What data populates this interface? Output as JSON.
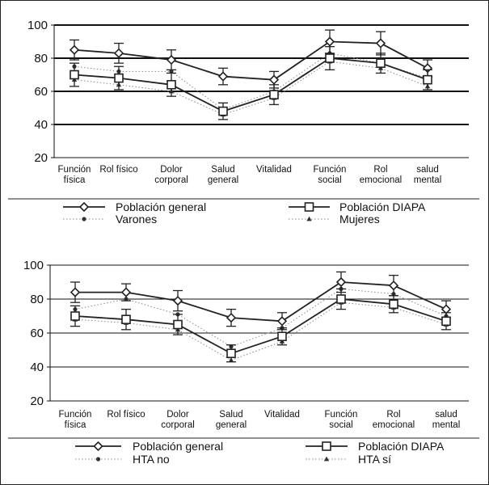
{
  "chart_data": [
    {
      "type": "line",
      "categories": [
        [
          "Función",
          "física"
        ],
        [
          "Rol físico"
        ],
        [
          "Dolor",
          "corporal"
        ],
        [
          "Salud",
          "general"
        ],
        [
          "Vitalidad"
        ],
        [
          "Función",
          "social"
        ],
        [
          "Rol",
          "emocional"
        ],
        [
          "salud",
          "mental"
        ]
      ],
      "ylim": [
        20,
        100
      ],
      "yticks": [
        20,
        40,
        60,
        80,
        100
      ],
      "grid": "horizontal lines at 40, 60, 80, 100",
      "series": [
        {
          "name": "Población general",
          "marker": "diamond",
          "style": "solid",
          "color": "#222222",
          "values": [
            85,
            83,
            79,
            69,
            67,
            90,
            89,
            74
          ],
          "err": [
            6,
            6,
            6,
            5,
            5,
            7,
            7,
            5
          ]
        },
        {
          "name": "Población DIAPA",
          "marker": "square",
          "style": "solid",
          "color": "#222222",
          "values": [
            70,
            68,
            64,
            48,
            58,
            80,
            77,
            67
          ],
          "err": [
            7,
            7,
            7,
            5,
            6,
            7,
            6,
            6
          ]
        },
        {
          "name": "Varones",
          "marker": "dot",
          "style": "dotted",
          "color": "#888888",
          "values": [
            75,
            72,
            72,
            49,
            60,
            83,
            77,
            68
          ],
          "err": [
            0,
            0,
            0,
            0,
            0,
            0,
            0,
            0
          ]
        },
        {
          "name": "Mujeres",
          "marker": "triangle",
          "style": "dotted",
          "color": "#888888",
          "values": [
            67,
            64,
            60,
            46,
            56,
            78,
            74,
            63
          ],
          "err": [
            0,
            0,
            0,
            0,
            0,
            0,
            0,
            0
          ]
        }
      ],
      "legend": [
        [
          "Población general",
          "Población DIAPA"
        ],
        [
          "Varones",
          "Mujeres"
        ]
      ]
    },
    {
      "type": "line",
      "categories": [
        [
          "Función",
          "física"
        ],
        [
          "Rol físico"
        ],
        [
          "Dolor",
          "corporal"
        ],
        [
          "Salud",
          "general"
        ],
        [
          "Vitalidad"
        ],
        [
          "Función",
          "social"
        ],
        [
          "Rol",
          "emocional"
        ],
        [
          "salud",
          "mental"
        ]
      ],
      "ylim": [
        20,
        100
      ],
      "yticks": [
        20,
        40,
        60,
        80,
        100
      ],
      "grid": "horizontal lines at 40, 60, 80, 100",
      "series": [
        {
          "name": "Población general",
          "marker": "diamond",
          "style": "solid",
          "color": "#222222",
          "values": [
            84,
            84,
            79,
            69,
            67,
            90,
            88,
            74
          ],
          "err": [
            6,
            5,
            6,
            5,
            5,
            6,
            6,
            5
          ]
        },
        {
          "name": "Población DIAPA",
          "marker": "square",
          "style": "solid",
          "color": "#222222",
          "values": [
            70,
            68,
            65,
            48,
            58,
            80,
            77,
            67
          ],
          "err": [
            6,
            6,
            6,
            5,
            5,
            6,
            5,
            5
          ]
        },
        {
          "name": "HTA no",
          "marker": "dot",
          "style": "dotted",
          "color": "#888888",
          "values": [
            74,
            80,
            71,
            52,
            63,
            86,
            83,
            70
          ],
          "err": [
            0,
            0,
            0,
            0,
            0,
            0,
            0,
            0
          ]
        },
        {
          "name": "HTA sí",
          "marker": "triangle",
          "style": "dotted",
          "color": "#888888",
          "values": [
            68,
            66,
            62,
            44,
            55,
            78,
            75,
            65
          ],
          "err": [
            0,
            0,
            0,
            0,
            0,
            0,
            0,
            0
          ]
        }
      ],
      "legend": [
        [
          "Población general",
          "Población DIAPA"
        ],
        [
          "HTA no",
          "HTA sí"
        ]
      ]
    }
  ]
}
